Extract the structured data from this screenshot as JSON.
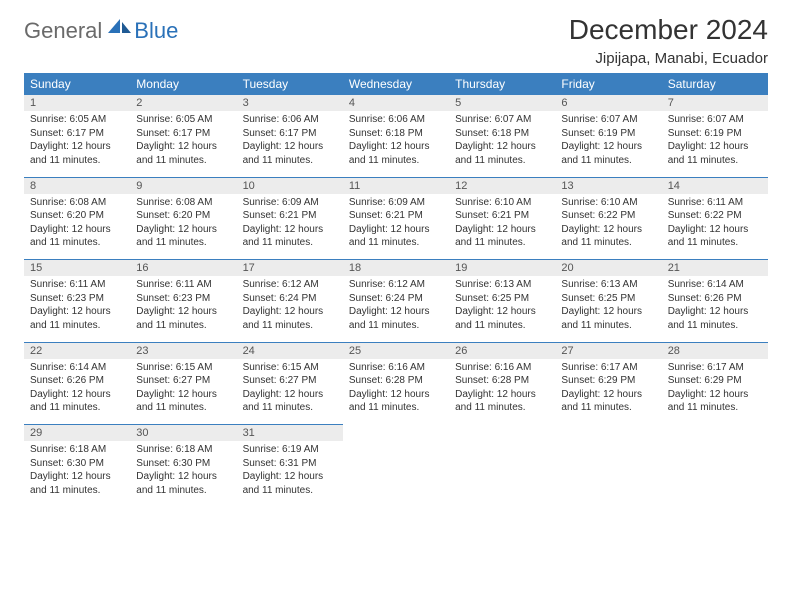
{
  "logo": {
    "general": "General",
    "blue": "Blue"
  },
  "title": "December 2024",
  "location": "Jipijapa, Manabi, Ecuador",
  "colors": {
    "header_bg": "#3b7fbf",
    "header_text": "#ffffff",
    "daynum_bg": "#ececec",
    "divider": "#3b7fbf",
    "logo_gray": "#6a6a6a",
    "logo_blue": "#2a71b8"
  },
  "weekdays": [
    "Sunday",
    "Monday",
    "Tuesday",
    "Wednesday",
    "Thursday",
    "Friday",
    "Saturday"
  ],
  "weeks": [
    [
      {
        "n": "1",
        "sr": "6:05 AM",
        "ss": "6:17 PM",
        "dl": "12 hours and 11 minutes."
      },
      {
        "n": "2",
        "sr": "6:05 AM",
        "ss": "6:17 PM",
        "dl": "12 hours and 11 minutes."
      },
      {
        "n": "3",
        "sr": "6:06 AM",
        "ss": "6:17 PM",
        "dl": "12 hours and 11 minutes."
      },
      {
        "n": "4",
        "sr": "6:06 AM",
        "ss": "6:18 PM",
        "dl": "12 hours and 11 minutes."
      },
      {
        "n": "5",
        "sr": "6:07 AM",
        "ss": "6:18 PM",
        "dl": "12 hours and 11 minutes."
      },
      {
        "n": "6",
        "sr": "6:07 AM",
        "ss": "6:19 PM",
        "dl": "12 hours and 11 minutes."
      },
      {
        "n": "7",
        "sr": "6:07 AM",
        "ss": "6:19 PM",
        "dl": "12 hours and 11 minutes."
      }
    ],
    [
      {
        "n": "8",
        "sr": "6:08 AM",
        "ss": "6:20 PM",
        "dl": "12 hours and 11 minutes."
      },
      {
        "n": "9",
        "sr": "6:08 AM",
        "ss": "6:20 PM",
        "dl": "12 hours and 11 minutes."
      },
      {
        "n": "10",
        "sr": "6:09 AM",
        "ss": "6:21 PM",
        "dl": "12 hours and 11 minutes."
      },
      {
        "n": "11",
        "sr": "6:09 AM",
        "ss": "6:21 PM",
        "dl": "12 hours and 11 minutes."
      },
      {
        "n": "12",
        "sr": "6:10 AM",
        "ss": "6:21 PM",
        "dl": "12 hours and 11 minutes."
      },
      {
        "n": "13",
        "sr": "6:10 AM",
        "ss": "6:22 PM",
        "dl": "12 hours and 11 minutes."
      },
      {
        "n": "14",
        "sr": "6:11 AM",
        "ss": "6:22 PM",
        "dl": "12 hours and 11 minutes."
      }
    ],
    [
      {
        "n": "15",
        "sr": "6:11 AM",
        "ss": "6:23 PM",
        "dl": "12 hours and 11 minutes."
      },
      {
        "n": "16",
        "sr": "6:11 AM",
        "ss": "6:23 PM",
        "dl": "12 hours and 11 minutes."
      },
      {
        "n": "17",
        "sr": "6:12 AM",
        "ss": "6:24 PM",
        "dl": "12 hours and 11 minutes."
      },
      {
        "n": "18",
        "sr": "6:12 AM",
        "ss": "6:24 PM",
        "dl": "12 hours and 11 minutes."
      },
      {
        "n": "19",
        "sr": "6:13 AM",
        "ss": "6:25 PM",
        "dl": "12 hours and 11 minutes."
      },
      {
        "n": "20",
        "sr": "6:13 AM",
        "ss": "6:25 PM",
        "dl": "12 hours and 11 minutes."
      },
      {
        "n": "21",
        "sr": "6:14 AM",
        "ss": "6:26 PM",
        "dl": "12 hours and 11 minutes."
      }
    ],
    [
      {
        "n": "22",
        "sr": "6:14 AM",
        "ss": "6:26 PM",
        "dl": "12 hours and 11 minutes."
      },
      {
        "n": "23",
        "sr": "6:15 AM",
        "ss": "6:27 PM",
        "dl": "12 hours and 11 minutes."
      },
      {
        "n": "24",
        "sr": "6:15 AM",
        "ss": "6:27 PM",
        "dl": "12 hours and 11 minutes."
      },
      {
        "n": "25",
        "sr": "6:16 AM",
        "ss": "6:28 PM",
        "dl": "12 hours and 11 minutes."
      },
      {
        "n": "26",
        "sr": "6:16 AM",
        "ss": "6:28 PM",
        "dl": "12 hours and 11 minutes."
      },
      {
        "n": "27",
        "sr": "6:17 AM",
        "ss": "6:29 PM",
        "dl": "12 hours and 11 minutes."
      },
      {
        "n": "28",
        "sr": "6:17 AM",
        "ss": "6:29 PM",
        "dl": "12 hours and 11 minutes."
      }
    ],
    [
      {
        "n": "29",
        "sr": "6:18 AM",
        "ss": "6:30 PM",
        "dl": "12 hours and 11 minutes."
      },
      {
        "n": "30",
        "sr": "6:18 AM",
        "ss": "6:30 PM",
        "dl": "12 hours and 11 minutes."
      },
      {
        "n": "31",
        "sr": "6:19 AM",
        "ss": "6:31 PM",
        "dl": "12 hours and 11 minutes."
      },
      null,
      null,
      null,
      null
    ]
  ],
  "labels": {
    "sunrise": "Sunrise:",
    "sunset": "Sunset:",
    "daylight": "Daylight:"
  }
}
